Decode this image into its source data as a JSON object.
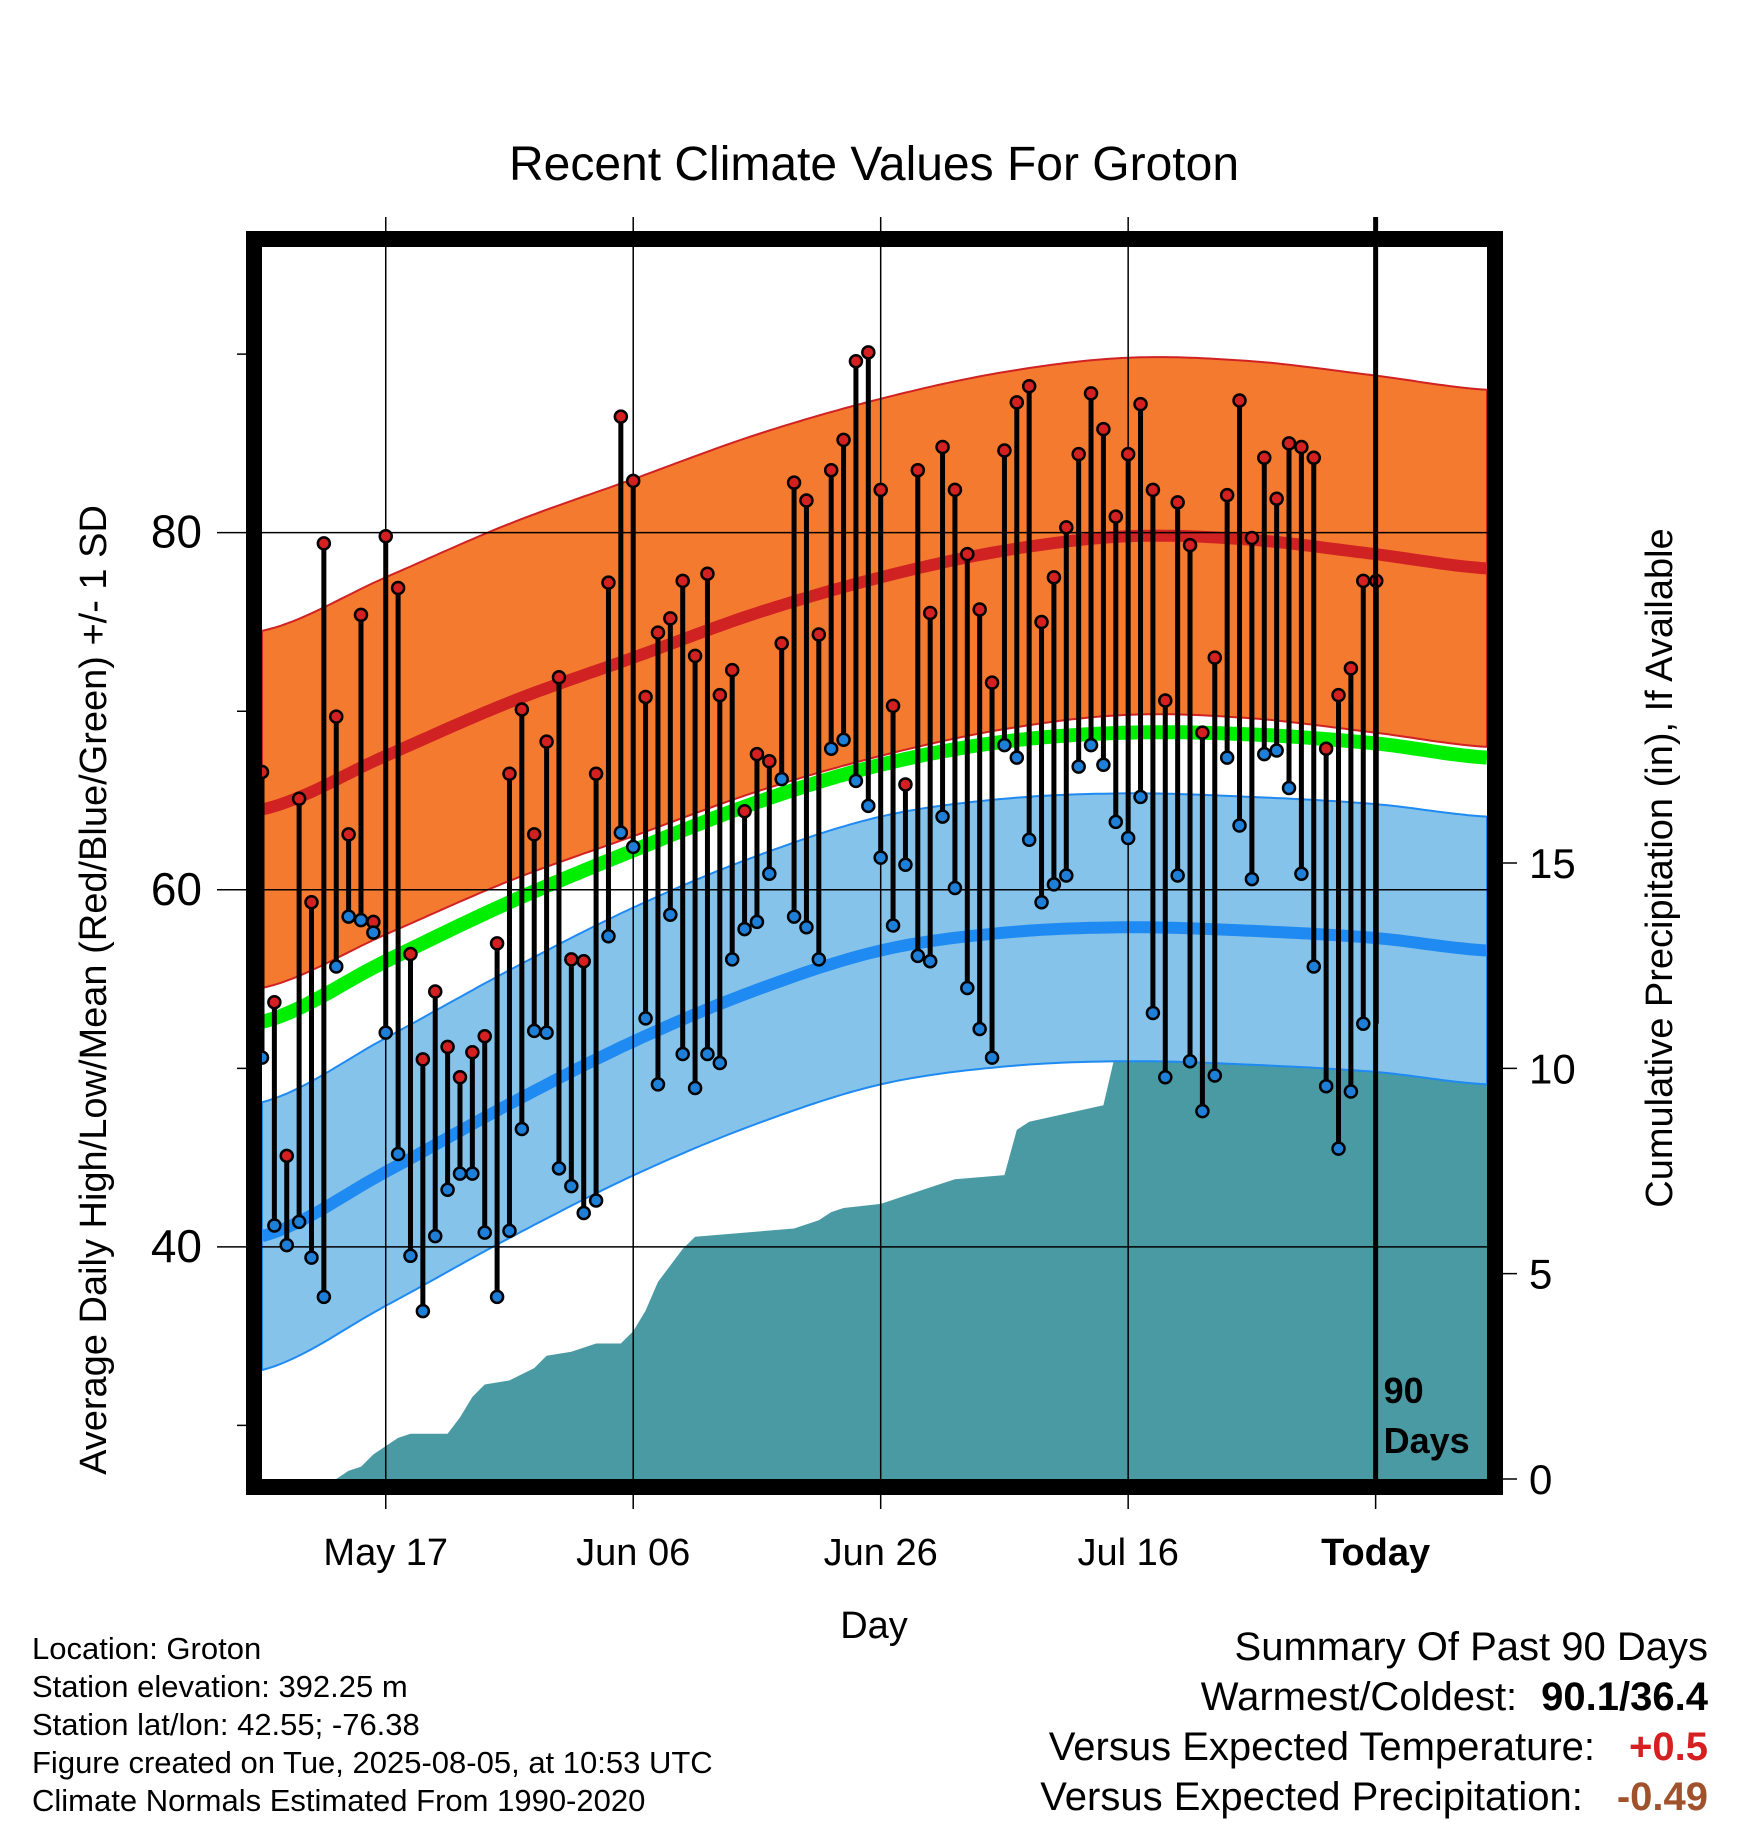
{
  "chart_data": {
    "type": "line",
    "title": "Recent Climate Values For Groton",
    "xlabel": "Day",
    "ylabel": "Average Daily High/Low/Mean (Red/Blue/Green) +/- 1 SD",
    "y2label": "Cumulative Precipitation (in), If Available",
    "x_range_days": [
      -90,
      9
    ],
    "ylim": [
      27,
      96
    ],
    "y2lim": [
      0,
      30
    ],
    "y_ticks": [
      40,
      60,
      80
    ],
    "y2_ticks": [
      0,
      5,
      10,
      15
    ],
    "x_ticks": [
      {
        "day": -80,
        "label": "May 17"
      },
      {
        "day": -60,
        "label": "Jun 06"
      },
      {
        "day": -40,
        "label": "Jun 26"
      },
      {
        "day": -20,
        "label": "Jul 16"
      },
      {
        "day": 0,
        "label": "Today"
      }
    ],
    "today_marker": {
      "line1": "90",
      "line2": "Days"
    },
    "grid": true,
    "colors": {
      "high_band": "#f47a30",
      "high_line": "#d02222",
      "low_band": "#86c3ea",
      "low_line": "#1e8af2",
      "mean_line": "#00ee00",
      "precip": "#4a9aa4",
      "high_point": "#d42020",
      "low_point": "#1e7fd8"
    },
    "normals": {
      "day": [
        -90,
        -80,
        -70,
        -60,
        -50,
        -40,
        -30,
        -20,
        -10,
        0,
        9
      ],
      "high": [
        64.5,
        67.5,
        70.5,
        73.0,
        75.5,
        77.5,
        79.0,
        79.8,
        79.6,
        78.8,
        78.0
      ],
      "low": [
        40.6,
        44.2,
        48.0,
        51.5,
        54.4,
        56.6,
        57.6,
        57.9,
        57.7,
        57.3,
        56.6
      ],
      "mean": [
        52.6,
        56.0,
        59.3,
        62.2,
        64.9,
        67.0,
        68.3,
        68.8,
        68.7,
        68.2,
        67.4
      ],
      "sd_high": 10.0,
      "sd_low": 7.5
    },
    "series": [
      {
        "name": "High",
        "x": [
          -90,
          -89,
          -88,
          -87,
          -86,
          -85,
          -84,
          -83,
          -82,
          -81,
          -80,
          -79,
          -78,
          -77,
          -76,
          -75,
          -74,
          -73,
          -72,
          -71,
          -70,
          -69,
          -68,
          -67,
          -66,
          -65,
          -64,
          -63,
          -62,
          -61,
          -60,
          -59,
          -58,
          -57,
          -56,
          -55,
          -54,
          -53,
          -52,
          -51,
          -50,
          -49,
          -48,
          -47,
          -46,
          -45,
          -44,
          -43,
          -42,
          -41,
          -40,
          -39,
          -38,
          -37,
          -36,
          -35,
          -34,
          -33,
          -32,
          -31,
          -30,
          -29,
          -28,
          -27,
          -26,
          -25,
          -24,
          -23,
          -22,
          -21,
          -20,
          -19,
          -18,
          -17,
          -16,
          -15,
          -14,
          -13,
          -12,
          -11,
          -10,
          -9,
          -8,
          -7,
          -6,
          -5,
          -4,
          -3,
          -2,
          -1
        ],
        "values": [
          66.6,
          53.7,
          45.1,
          65.1,
          59.3,
          79.4,
          69.7,
          63.1,
          75.4,
          58.2,
          79.8,
          76.9,
          56.4,
          50.5,
          54.3,
          51.2,
          49.5,
          50.9,
          51.8,
          57.0,
          66.5,
          70.1,
          63.1,
          68.3,
          71.9,
          56.1,
          56.0,
          66.5,
          77.2,
          86.5,
          82.9,
          70.8,
          74.4,
          75.2,
          77.3,
          73.1,
          77.7,
          70.9,
          72.3,
          64.4,
          67.6,
          67.2,
          73.8,
          82.8,
          81.8,
          74.3,
          83.5,
          85.2,
          89.6,
          90.1,
          82.4,
          70.3,
          65.9,
          83.5,
          75.5,
          84.8,
          82.4,
          78.8,
          75.7,
          71.6,
          84.6,
          87.3,
          88.2,
          75.0,
          77.5,
          80.3,
          84.4,
          87.8,
          85.8,
          80.9,
          84.4,
          87.2,
          82.4,
          70.6,
          81.7,
          79.3,
          68.8,
          73.0,
          82.1,
          87.4,
          79.7,
          84.2,
          81.9,
          85.0,
          84.8,
          84.2,
          67.9,
          70.9,
          72.4,
          77.3
        ],
        "extra": [
          {
            "x": -1,
            "value": 77.3
          }
        ]
      },
      {
        "name": "Low",
        "x": [
          -90,
          -89,
          -88,
          -87,
          -86,
          -85,
          -84,
          -83,
          -82,
          -81,
          -80,
          -79,
          -78,
          -77,
          -76,
          -75,
          -74,
          -73,
          -72,
          -71,
          -70,
          -69,
          -68,
          -67,
          -66,
          -65,
          -64,
          -63,
          -62,
          -61,
          -60,
          -59,
          -58,
          -57,
          -56,
          -55,
          -54,
          -53,
          -52,
          -51,
          -50,
          -49,
          -48,
          -47,
          -46,
          -45,
          -44,
          -43,
          -42,
          -41,
          -40,
          -39,
          -38,
          -37,
          -36,
          -35,
          -34,
          -33,
          -32,
          -31,
          -30,
          -29,
          -28,
          -27,
          -26,
          -25,
          -24,
          -23,
          -22,
          -21,
          -20,
          -19,
          -18,
          -17,
          -16,
          -15,
          -14,
          -13,
          -12,
          -11,
          -10,
          -9,
          -8,
          -7,
          -6,
          -5,
          -4,
          -3,
          -2,
          -1
        ],
        "values": [
          50.6,
          41.2,
          40.1,
          41.4,
          39.4,
          37.2,
          55.7,
          58.5,
          58.3,
          57.6,
          52.0,
          45.2,
          39.5,
          36.4,
          40.6,
          43.2,
          44.1,
          44.1,
          40.8,
          37.2,
          40.9,
          46.6,
          52.1,
          52.0,
          44.4,
          43.4,
          41.9,
          42.6,
          57.4,
          63.2,
          62.4,
          52.8,
          49.1,
          58.6,
          50.8,
          48.9,
          50.8,
          50.3,
          56.1,
          57.8,
          58.2,
          60.9,
          66.2,
          58.5,
          57.9,
          56.1,
          67.9,
          68.4,
          66.1,
          64.7,
          61.8,
          58.0,
          61.4,
          56.3,
          56.0,
          64.1,
          60.1,
          54.5,
          52.2,
          50.6,
          68.1,
          67.4,
          62.8,
          59.3,
          60.3,
          60.8,
          66.9,
          68.1,
          67.0,
          63.8,
          62.9,
          65.2,
          53.1,
          49.5,
          60.8,
          50.4,
          47.6,
          49.6,
          67.4,
          63.6,
          60.6,
          67.6,
          67.8,
          65.7,
          60.9,
          55.7,
          49.0,
          45.5,
          48.7,
          52.5
        ]
      }
    ],
    "precip": {
      "x": [
        -90,
        -84,
        -83,
        -82,
        -81,
        -80,
        -79,
        -78,
        -77,
        -75,
        -74,
        -73,
        -72,
        -70,
        -68,
        -67,
        -65,
        -64,
        -63,
        -61,
        -60,
        -59,
        -58,
        -57,
        -56,
        -55,
        -47,
        -46,
        -45,
        -44,
        -43,
        -40,
        -39,
        -38,
        -37,
        -36,
        -35,
        -34,
        -30,
        -29,
        -28,
        -25,
        -22,
        -21,
        -20,
        -15,
        -14,
        -12,
        -11,
        -10,
        -9,
        -8,
        -6,
        -5,
        -3,
        -2,
        -1,
        0,
        9
      ],
      "values": [
        0.0,
        0.0,
        0.2,
        0.3,
        0.6,
        0.8,
        1.0,
        1.1,
        1.1,
        1.1,
        1.5,
        2.0,
        2.3,
        2.4,
        2.7,
        3.0,
        3.1,
        3.2,
        3.3,
        3.3,
        3.6,
        4.1,
        4.8,
        5.2,
        5.6,
        5.9,
        6.1,
        6.2,
        6.3,
        6.5,
        6.6,
        6.7,
        6.8,
        6.9,
        7.0,
        7.1,
        7.2,
        7.3,
        7.4,
        8.5,
        8.7,
        8.9,
        9.1,
        10.4,
        10.5,
        10.5,
        10.5,
        10.6,
        10.7,
        10.9,
        11.0,
        11.0,
        11.0,
        11.8,
        11.8,
        11.8,
        11.8,
        11.8,
        11.8
      ]
    }
  },
  "meta": {
    "location": "Location: Groton",
    "elevation": "Station elevation: 392.25 m",
    "latlon": "Station lat/lon: 42.55; -76.38",
    "created": "Figure created on Tue, 2025-08-05, at 10:53 UTC",
    "normals": "Climate Normals Estimated From 1990-2020"
  },
  "summary": {
    "title": "Summary Of Past 90 Days",
    "warmest_label": "Warmest/Coldest:",
    "warmest_value": "90.1/36.4",
    "temp_label": "Versus Expected Temperature:",
    "temp_value": "+0.5",
    "temp_color": "#d42020",
    "precip_label": "Versus Expected Precipitation:",
    "precip_value": "-0.49",
    "precip_color": "#a0522d"
  }
}
